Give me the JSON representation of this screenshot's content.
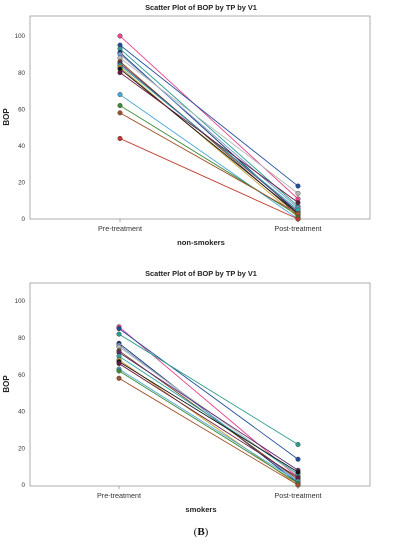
{
  "caption": {
    "open": "(",
    "letter": "B",
    "close": ")"
  },
  "colors": {
    "frame": "#9a9a9a",
    "palette": [
      "#e8478c",
      "#1f4e9c",
      "#2a9d8f",
      "#14326e",
      "#7a9bd3",
      "#b5b5b5",
      "#7a4a1e",
      "#5c2a6e",
      "#2aa8a8",
      "#c79a2e",
      "#151515",
      "#6a1a3c",
      "#4aa8d8",
      "#3d8b37",
      "#a0522d",
      "#c0392b",
      "#6e3a8c",
      "#d4a017"
    ]
  },
  "chart_data": [
    {
      "type": "line",
      "title": "Scatter Plot of BOP by TP by V1",
      "xlabel": "non-smokers",
      "ylabel": "BOP",
      "categories": [
        "Pre-treatment",
        "Post-treatment"
      ],
      "ylim": [
        0,
        110
      ],
      "yticks": [
        0,
        20,
        40,
        60,
        80,
        100
      ],
      "grid": false,
      "legend": "none",
      "series": [
        {
          "values": [
            100,
            11
          ]
        },
        {
          "values": [
            95,
            18
          ]
        },
        {
          "values": [
            93,
            7
          ]
        },
        {
          "values": [
            91,
            3
          ]
        },
        {
          "values": [
            90,
            6
          ]
        },
        {
          "values": [
            88,
            14
          ]
        },
        {
          "values": [
            86,
            2
          ]
        },
        {
          "values": [
            85,
            4
          ]
        },
        {
          "values": [
            84,
            5
          ]
        },
        {
          "values": [
            83,
            1
          ]
        },
        {
          "values": [
            82,
            3
          ]
        },
        {
          "values": [
            80,
            9
          ]
        },
        {
          "values": [
            68,
            0
          ]
        },
        {
          "values": [
            62,
            2
          ]
        },
        {
          "values": [
            58,
            3
          ]
        },
        {
          "values": [
            44,
            0
          ]
        }
      ]
    },
    {
      "type": "line",
      "title": "Scatter Plot of BOP by TP by V1",
      "xlabel": "smokers",
      "ylabel": "BOP",
      "categories": [
        "Pre-treatment",
        "Post-treatment"
      ],
      "ylim": [
        0,
        110
      ],
      "yticks": [
        0,
        20,
        40,
        60,
        80,
        100
      ],
      "grid": false,
      "legend": "none",
      "series": [
        {
          "values": [
            86,
            4
          ]
        },
        {
          "values": [
            85,
            14
          ]
        },
        {
          "values": [
            82,
            22
          ]
        },
        {
          "values": [
            77,
            1
          ]
        },
        {
          "values": [
            76,
            2
          ]
        },
        {
          "values": [
            75,
            5
          ]
        },
        {
          "values": [
            73,
            3
          ]
        },
        {
          "values": [
            72,
            8
          ]
        },
        {
          "values": [
            70,
            6
          ]
        },
        {
          "values": [
            68,
            0
          ]
        },
        {
          "values": [
            67,
            7
          ]
        },
        {
          "values": [
            66,
            4
          ]
        },
        {
          "values": [
            63,
            2
          ]
        },
        {
          "values": [
            62,
            1
          ]
        },
        {
          "values": [
            58,
            0
          ]
        }
      ]
    }
  ]
}
